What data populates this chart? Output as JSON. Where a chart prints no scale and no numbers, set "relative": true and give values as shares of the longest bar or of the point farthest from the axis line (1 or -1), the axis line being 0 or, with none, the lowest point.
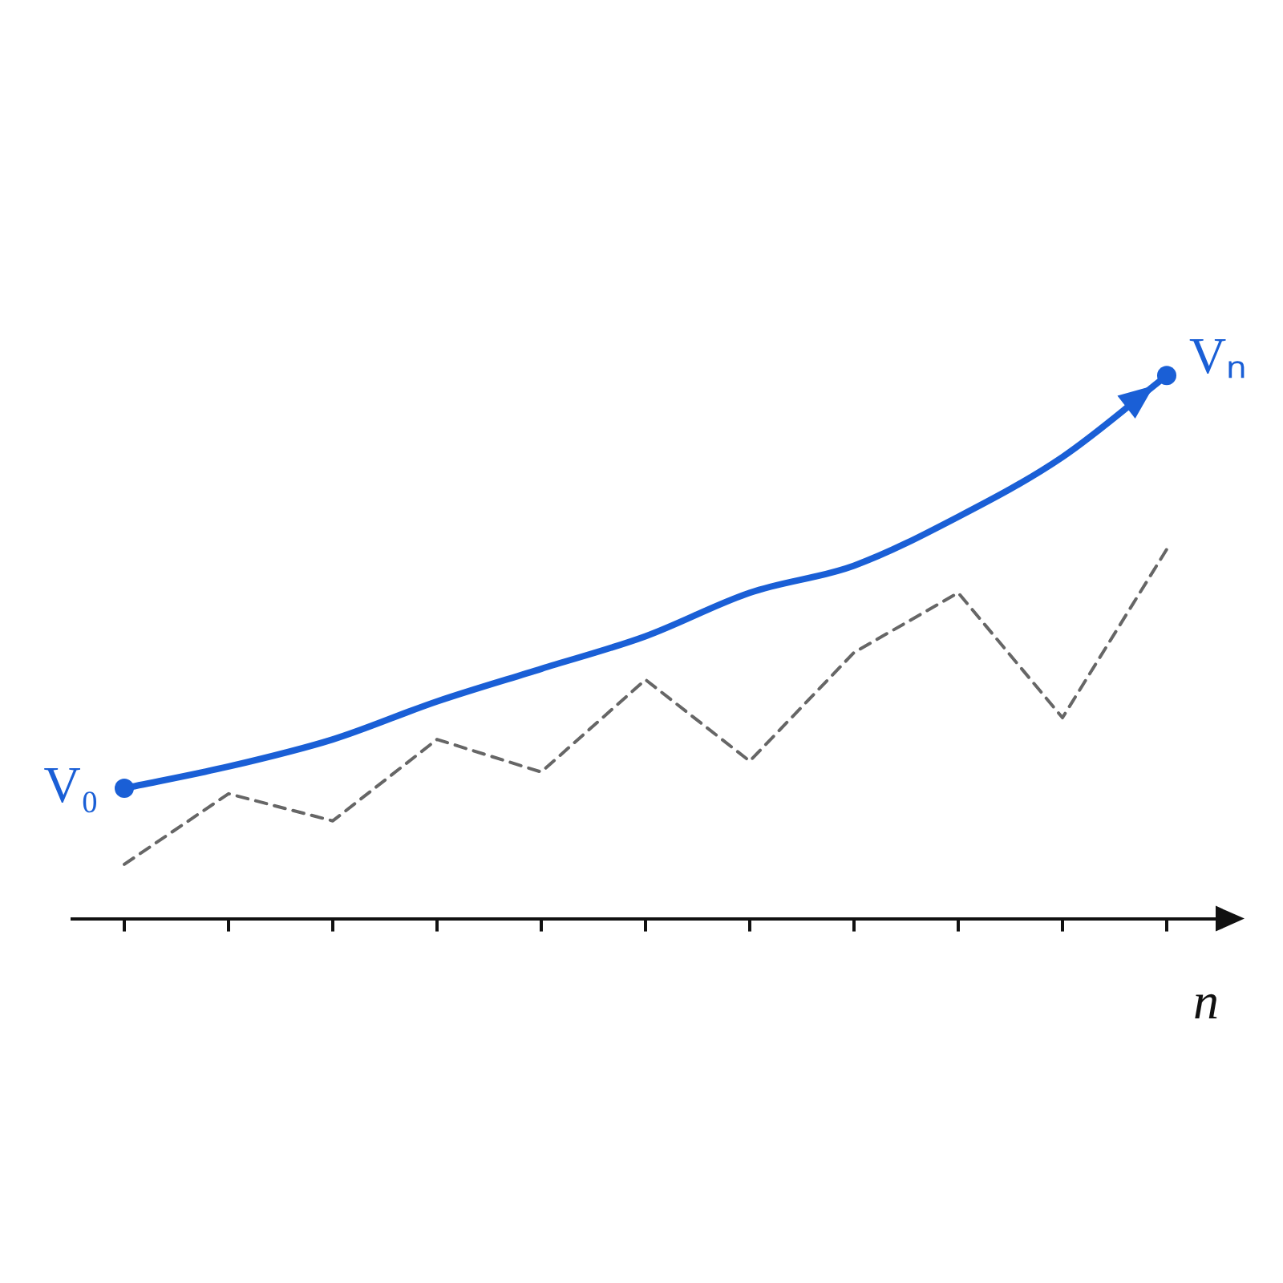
{
  "chart_data": {
    "type": "line",
    "relative": true,
    "xlabel": "n",
    "categories": [
      null,
      null,
      null,
      null,
      null,
      null,
      null,
      null,
      null,
      null,
      null
    ],
    "series": [
      {
        "color": "#666666",
        "line_style": "dashed",
        "values": [
          0.1,
          0.23,
          0.18,
          0.33,
          0.27,
          0.44,
          0.29,
          0.49,
          0.6,
          0.37,
          0.68
        ]
      },
      {
        "color": "#1a5fd6",
        "line_style": "solid",
        "values": [
          0.24,
          0.28,
          0.33,
          0.4,
          0.46,
          0.52,
          0.6,
          0.65,
          0.74,
          0.85,
          1
        ]
      }
    ],
    "annotations": [
      "V₀",
      "Vₙ"
    ],
    "legend": false,
    "grid": false,
    "marker": "none"
  }
}
